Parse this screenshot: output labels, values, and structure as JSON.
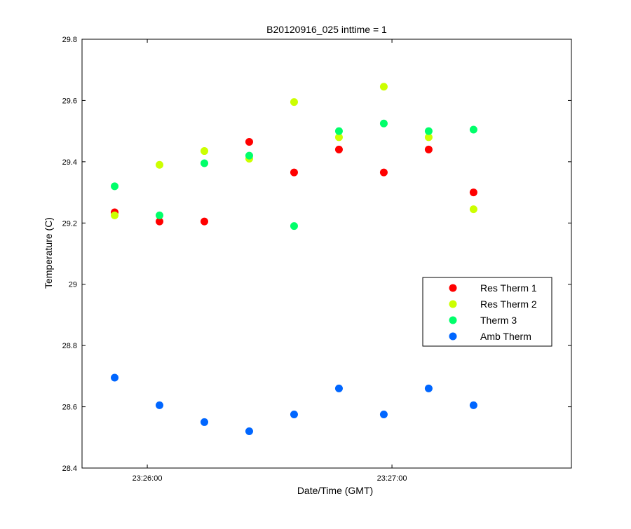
{
  "chart_data": {
    "type": "scatter",
    "title": "B20120916_025 inttime = 1",
    "xlabel": "Date/Time (GMT)",
    "ylabel": "Temperature (C)",
    "x_tick_values": [
      "23:26:00",
      "23:27:00"
    ],
    "x_tick_labels": [
      "23:26:00",
      "23:27:00"
    ],
    "xlim": [
      "23:25:44",
      "23:27:44"
    ],
    "y_ticks": [
      28.4,
      28.6,
      28.8,
      29,
      29.2,
      29.4,
      29.6,
      29.8
    ],
    "y_tick_labels": [
      "28.4",
      "28.6",
      "28.8",
      "29",
      "29.2",
      "29.4",
      "29.6",
      "29.8"
    ],
    "ylim": [
      28.4,
      29.8
    ],
    "grid": false,
    "legend_position": "center-right",
    "x": [
      "23:25:52",
      "23:26:03",
      "23:26:14",
      "23:26:25",
      "23:26:36",
      "23:26:47",
      "23:26:58",
      "23:27:09",
      "23:27:20"
    ],
    "series": [
      {
        "name": "Res Therm 1",
        "color": "#ff0000",
        "values": [
          29.235,
          29.205,
          29.205,
          29.465,
          29.365,
          29.44,
          29.365,
          29.44,
          29.3
        ]
      },
      {
        "name": "Res Therm 2",
        "color": "#ccff00",
        "values": [
          29.225,
          29.39,
          29.435,
          29.41,
          29.595,
          29.48,
          29.645,
          29.48,
          29.245
        ]
      },
      {
        "name": "Therm 3",
        "color": "#00ff6a",
        "values": [
          29.32,
          29.225,
          29.395,
          29.42,
          29.19,
          29.5,
          29.525,
          29.5,
          29.505
        ]
      },
      {
        "name": "Amb Therm",
        "color": "#0066ff",
        "values": [
          28.695,
          28.605,
          28.55,
          28.52,
          28.575,
          28.66,
          28.575,
          28.66,
          28.605
        ]
      }
    ]
  }
}
